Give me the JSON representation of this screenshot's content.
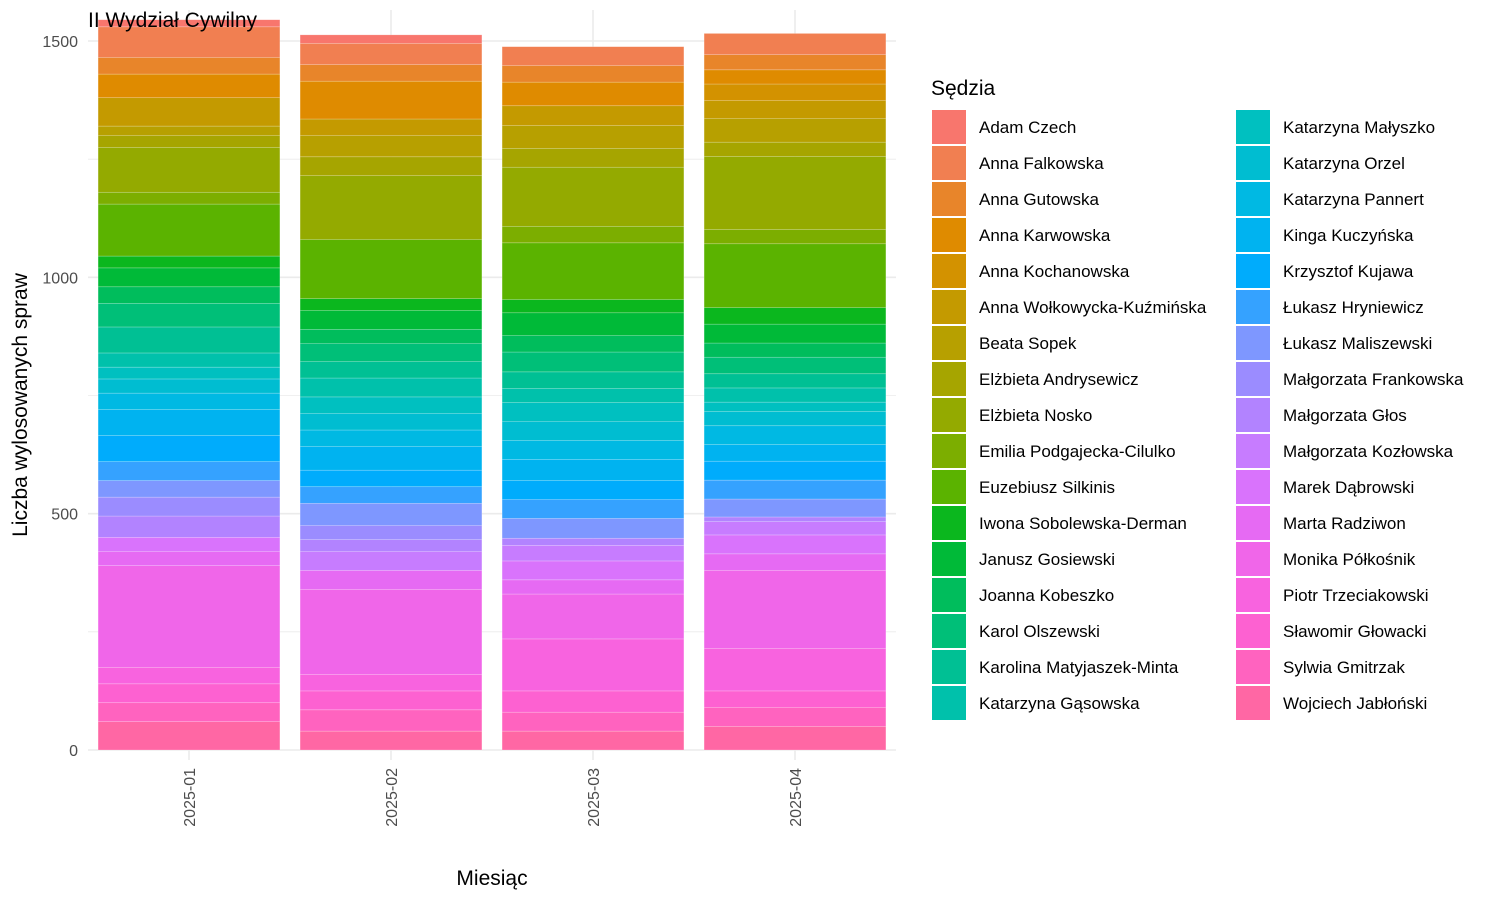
{
  "chart_data": {
    "type": "bar",
    "stacked": true,
    "title": "II Wydział Cywilny",
    "xlabel": "Miesiąc",
    "ylabel": "Liczba wylosowanych spraw",
    "legend_title": "Sędzia",
    "legend_position": "right",
    "grid": true,
    "ylim": [
      0,
      1500
    ],
    "yticks": [
      0,
      500,
      1000,
      1500
    ],
    "categories": [
      "2025-01",
      "2025-02",
      "2025-03",
      "2025-04"
    ],
    "series": [
      {
        "name": "Adam Czech",
        "color": "#F8766D",
        "values": [
          15,
          18,
          0,
          0
        ]
      },
      {
        "name": "Anna Falkowska",
        "color": "#F17F51",
        "values": [
          65,
          45,
          40,
          45
        ]
      },
      {
        "name": "Anna Gutowska",
        "color": "#E8852A",
        "values": [
          35,
          35,
          35,
          32
        ]
      },
      {
        "name": "Anna Karwowska",
        "color": "#DF8B00",
        "values": [
          50,
          80,
          50,
          30
        ]
      },
      {
        "name": "Anna Kochanowska",
        "color": "#D39200",
        "values": [
          0,
          0,
          0,
          35
        ]
      },
      {
        "name": "Anna Wołkowycka-Kuźmińska",
        "color": "#C49A00",
        "values": [
          60,
          35,
          42,
          38
        ]
      },
      {
        "name": "Beata Sopek",
        "color": "#B7A000",
        "values": [
          20,
          45,
          48,
          50
        ]
      },
      {
        "name": "Elżbieta Andrysewicz",
        "color": "#A6A500",
        "values": [
          25,
          40,
          40,
          30
        ]
      },
      {
        "name": "Elżbieta Nosko",
        "color": "#94AA00",
        "values": [
          95,
          135,
          125,
          155
        ]
      },
      {
        "name": "Emilia Podgajecka-Cilulko",
        "color": "#7CAE00",
        "values": [
          25,
          0,
          35,
          30
        ]
      },
      {
        "name": "Euzebiusz Silkinis",
        "color": "#5BB300",
        "values": [
          110,
          125,
          120,
          135
        ]
      },
      {
        "name": "Iwona Sobolewska-Derman",
        "color": "#0BB71E",
        "values": [
          25,
          25,
          28,
          35
        ]
      },
      {
        "name": "Janusz Gosiewski",
        "color": "#00BA38",
        "values": [
          40,
          40,
          48,
          40
        ]
      },
      {
        "name": "Joanna Kobeszko",
        "color": "#00BD5C",
        "values": [
          35,
          30,
          35,
          30
        ]
      },
      {
        "name": "Karol Olszewski",
        "color": "#00BF78",
        "values": [
          50,
          38,
          42,
          35
        ]
      },
      {
        "name": "Karolina Matyjaszek-Minta",
        "color": "#00C094",
        "values": [
          55,
          35,
          35,
          30
        ]
      },
      {
        "name": "Katarzyna Gąsowska",
        "color": "#00C1AB",
        "values": [
          30,
          40,
          30,
          30
        ]
      },
      {
        "name": "Katarzyna Małyszko",
        "color": "#00C0C0",
        "values": [
          25,
          35,
          40,
          20
        ]
      },
      {
        "name": "Katarzyna Orzel",
        "color": "#00BDD1",
        "values": [
          30,
          35,
          40,
          30
        ]
      },
      {
        "name": "Katarzyna Pannert",
        "color": "#00B9E3",
        "values": [
          35,
          35,
          40,
          40
        ]
      },
      {
        "name": "Kinga Kuczyńska",
        "color": "#00B3F0",
        "values": [
          55,
          50,
          45,
          35
        ]
      },
      {
        "name": "Krzysztof Kujawa",
        "color": "#00ACFC",
        "values": [
          55,
          35,
          40,
          40
        ]
      },
      {
        "name": "Łukasz Hryniewicz",
        "color": "#35A2FF",
        "values": [
          40,
          35,
          40,
          40
        ]
      },
      {
        "name": "Łukasz Maliszewski",
        "color": "#7E97FF",
        "values": [
          35,
          47,
          42,
          38
        ]
      },
      {
        "name": "Małgorzata Frankowska",
        "color": "#9B8CFF",
        "values": [
          40,
          30,
          0,
          0
        ]
      },
      {
        "name": "Małgorzata Głos",
        "color": "#B283FF",
        "values": [
          45,
          25,
          15,
          10
        ]
      },
      {
        "name": "Małgorzata Kozłowska",
        "color": "#C77CFF",
        "values": [
          0,
          40,
          33,
          28
        ]
      },
      {
        "name": "Marek Dąbrowski",
        "color": "#D973FC",
        "values": [
          30,
          0,
          40,
          40
        ]
      },
      {
        "name": "Marta Radziwon",
        "color": "#E66AF3",
        "values": [
          30,
          40,
          30,
          35
        ]
      },
      {
        "name": "Monika Półkośnik",
        "color": "#F066E9",
        "values": [
          215,
          180,
          95,
          165
        ]
      },
      {
        "name": "Piotr Trzeciakowski",
        "color": "#F863DF",
        "values": [
          35,
          35,
          110,
          90
        ]
      },
      {
        "name": "Sławomir Głowacki",
        "color": "#FD61D1",
        "values": [
          40,
          40,
          45,
          35
        ]
      },
      {
        "name": "Sylwia Gmitrzak",
        "color": "#FF63BF",
        "values": [
          40,
          45,
          40,
          40
        ]
      },
      {
        "name": "Wojciech Jabłoński",
        "color": "#FF67A4",
        "values": [
          60,
          40,
          40,
          50
        ]
      }
    ]
  }
}
